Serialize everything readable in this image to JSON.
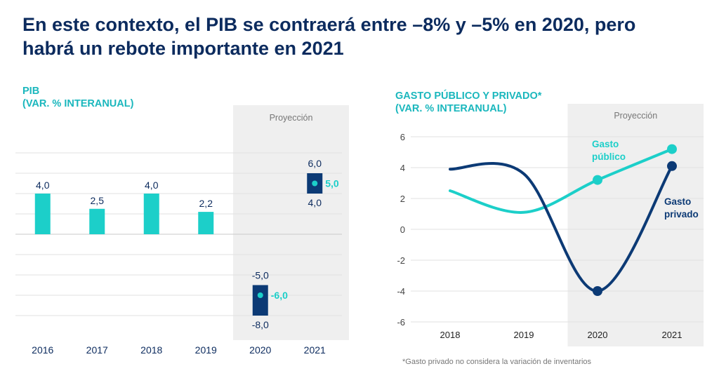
{
  "title_line1": "En este contexto, el PIB se contraerá entre –8% y –5% en 2020, pero",
  "title_line2": "habrá un rebote importante en 2021",
  "left_header_line1": "PIB",
  "left_header_line2": "(VAR. % INTERANUAL)",
  "right_header_line1": "GASTO PÚBLICO Y PRIVADO*",
  "right_header_line2": "(VAR. % INTERANUAL)",
  "projection_label": "Proyección",
  "footnote": "*Gasto privado no considera la variación de inventarios",
  "colors": {
    "teal": "#1ccfc9",
    "navy": "#0c3a75",
    "title": "#0c2b5e",
    "shade": "#efefef"
  },
  "chart_data": [
    {
      "type": "bar",
      "categories": [
        "2016",
        "2017",
        "2018",
        "2019",
        "2020",
        "2021"
      ],
      "values": [
        4.0,
        2.5,
        4.0,
        2.2,
        null,
        null
      ],
      "value_labels": [
        "4,0",
        "2,5",
        "4,0",
        "2,2",
        "",
        ""
      ],
      "ranges": [
        {
          "category": "2020",
          "high": -5.0,
          "low": -8.0,
          "point": -6.0,
          "high_label": "-5,0",
          "low_label": "-8,0",
          "point_label": "-6,0"
        },
        {
          "category": "2021",
          "high": 6.0,
          "low": 4.0,
          "point": 5.0,
          "high_label": "6,0",
          "low_label": "4,0",
          "point_label": "5,0"
        }
      ],
      "projection_categories": [
        "2020",
        "2021"
      ]
    },
    {
      "type": "line",
      "x": [
        "2018",
        "2019",
        "2020",
        "2021"
      ],
      "yticks": [
        "6",
        "4",
        "2",
        "0",
        "-2",
        "-4",
        "-6"
      ],
      "ylim": [
        -6,
        6
      ],
      "series": [
        {
          "name_line1": "Gasto",
          "name_line2": "público",
          "values": [
            2.5,
            1.1,
            3.2,
            5.2
          ],
          "marker_indices": [
            2,
            3
          ]
        },
        {
          "name_line1": "Gasto",
          "name_line2": "privado",
          "values": [
            3.9,
            3.6,
            -4.0,
            4.1
          ],
          "marker_indices": [
            2,
            3
          ]
        }
      ],
      "projection_categories": [
        "2020",
        "2021"
      ]
    }
  ]
}
